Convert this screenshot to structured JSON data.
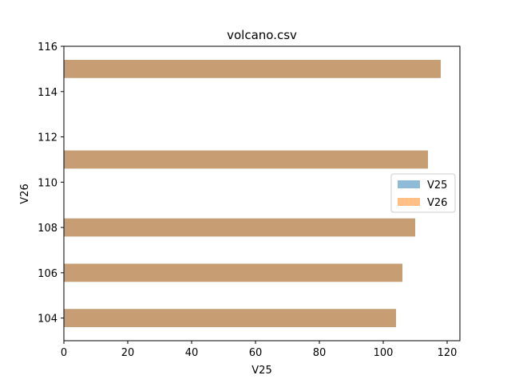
{
  "chart_data": {
    "type": "bar",
    "orientation": "horizontal",
    "title": "volcano.csv",
    "xlabel": "V25",
    "ylabel": "V26",
    "xlim": [
      0,
      124
    ],
    "ylim": [
      103,
      116
    ],
    "xticks": [
      0,
      20,
      40,
      60,
      80,
      100,
      120
    ],
    "yticks": [
      104,
      106,
      108,
      110,
      112,
      114,
      116
    ],
    "grid": false,
    "legend_position": "center-right",
    "series": [
      {
        "name": "V25",
        "color": "#1f77b4",
        "opacity": 0.5,
        "points": [
          {
            "y": 104,
            "x": 104
          },
          {
            "y": 106,
            "x": 106
          },
          {
            "y": 108,
            "x": 110
          },
          {
            "y": 111,
            "x": 114
          },
          {
            "y": 115,
            "x": 118
          }
        ]
      },
      {
        "name": "V26",
        "color": "#ff7f0e",
        "opacity": 0.5,
        "points": [
          {
            "y": 104,
            "x": 104
          },
          {
            "y": 106,
            "x": 106
          },
          {
            "y": 108,
            "x": 110
          },
          {
            "y": 111,
            "x": 114
          },
          {
            "y": 115,
            "x": 118
          }
        ]
      }
    ]
  }
}
